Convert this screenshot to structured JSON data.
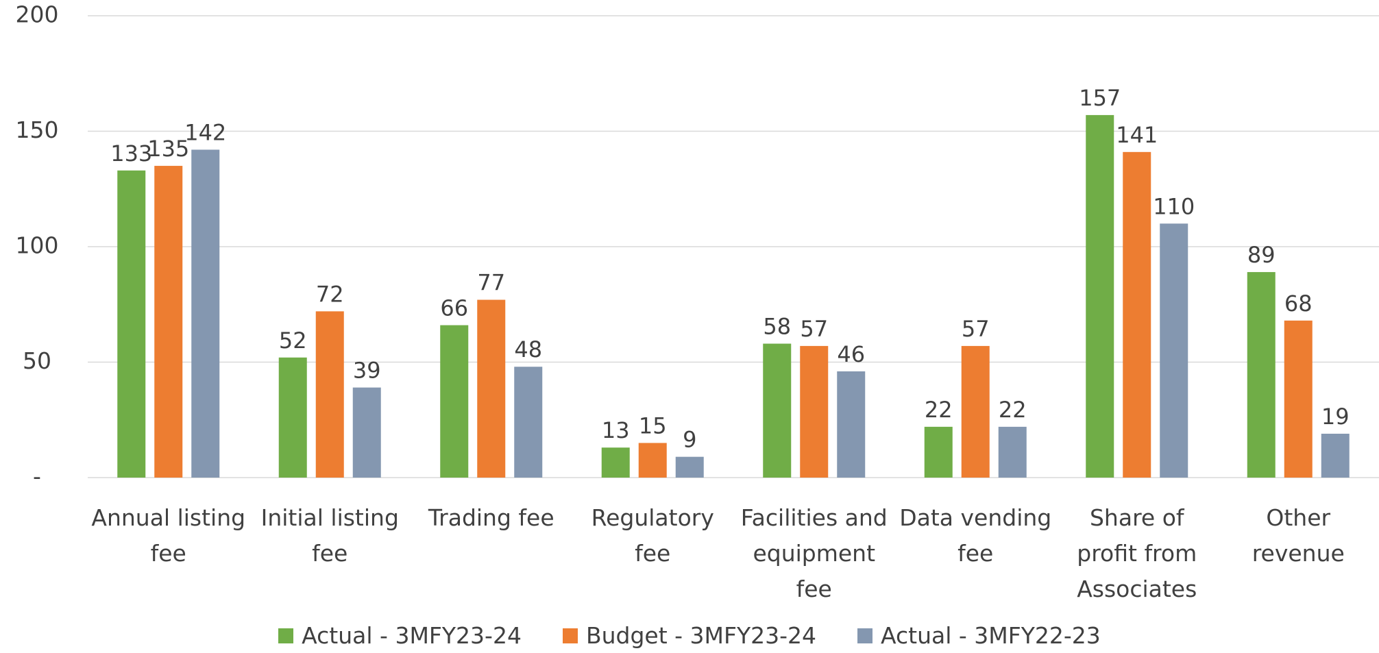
{
  "chart_data": {
    "type": "bar",
    "categories": [
      "Annual listing fee",
      "Initial listing fee",
      "Trading fee",
      "Regulatory fee",
      "Facilities and equipment fee",
      "Data vending fee",
      "Share of profit from Associates",
      "Other revenue"
    ],
    "series": [
      {
        "name": "Actual - 3MFY23-24",
        "color": "#70ad47",
        "values": [
          133,
          52,
          66,
          13,
          58,
          22,
          157,
          89
        ]
      },
      {
        "name": "Budget - 3MFY23-24",
        "color": "#ed7d31",
        "values": [
          135,
          72,
          77,
          15,
          57,
          57,
          141,
          68
        ]
      },
      {
        "name": "Actual - 3MFY22-23",
        "color": "#8497b0",
        "values": [
          142,
          39,
          48,
          9,
          46,
          22,
          110,
          19
        ]
      }
    ],
    "ylim": [
      0,
      200
    ],
    "yticks": [
      {
        "value": 0,
        "label": "-"
      },
      50,
      100,
      150,
      200
    ],
    "grid": true,
    "legend": "bottom"
  }
}
